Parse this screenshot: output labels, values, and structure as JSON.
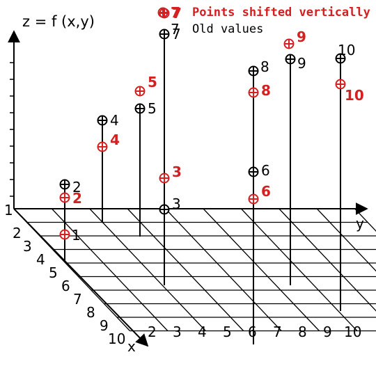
{
  "title": "z = f (x,y)",
  "legend": {
    "shifted_marker": "7",
    "shifted_label": "Points shifted vertically",
    "old_marker": "7",
    "old_label": "Old values"
  },
  "axes": {
    "x_label": "x",
    "y_label": "y",
    "origin_label": "1",
    "x_ticks": [
      "2",
      "3",
      "4",
      "5",
      "6",
      "7",
      "8",
      "9",
      "10"
    ],
    "y_ticks": [
      "2",
      "3",
      "4",
      "5",
      "6",
      "7",
      "8",
      "9",
      "10"
    ]
  },
  "points": [
    {
      "id": "1",
      "old": null,
      "shifted": "1"
    },
    {
      "id": "2",
      "old": "2",
      "shifted": "2"
    },
    {
      "id": "3",
      "old": "3",
      "shifted": "3"
    },
    {
      "id": "4",
      "old": "4",
      "shifted": "4"
    },
    {
      "id": "5",
      "old": "5",
      "shifted": "5"
    },
    {
      "id": "6",
      "old": "6",
      "shifted": "6"
    },
    {
      "id": "7",
      "old": "7",
      "shifted": "7"
    },
    {
      "id": "8",
      "old": "8",
      "shifted": "8"
    },
    {
      "id": "9",
      "old": "9",
      "shifted": "9"
    },
    {
      "id": "10",
      "old": "10",
      "shifted": "10"
    }
  ],
  "colors": {
    "shifted": "#d42020",
    "old": "#000000",
    "grid": "#000000"
  }
}
